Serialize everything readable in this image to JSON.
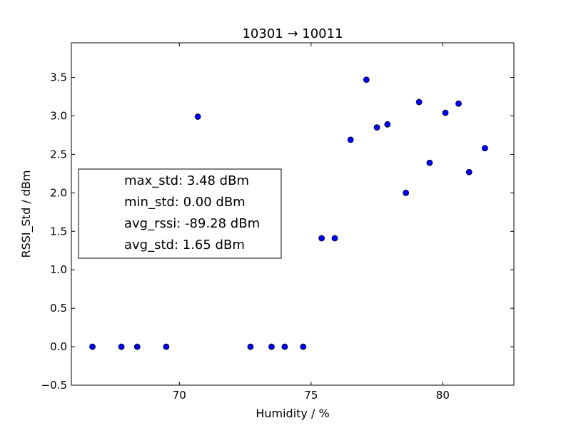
{
  "chart_data": {
    "type": "scatter",
    "title": "10301 → 10011",
    "xlabel": "Humidity / %",
    "ylabel": "RSSI_Std / dBm",
    "xlim": [
      65.9,
      82.7
    ],
    "ylim": [
      -0.5,
      3.95
    ],
    "xticks": [
      "70",
      "75",
      "80"
    ],
    "xtick_values": [
      70,
      75,
      80
    ],
    "yticks": [
      "−0.5",
      "0.0",
      "0.5",
      "1.0",
      "1.5",
      "2.0",
      "2.5",
      "3.0",
      "3.5"
    ],
    "ytick_values": [
      -0.5,
      0.0,
      0.5,
      1.0,
      1.5,
      2.0,
      2.5,
      3.0,
      3.5
    ],
    "grid": false,
    "marker_color": "#0000ff",
    "marker_edge": "#000000",
    "points": [
      {
        "x": 66.7,
        "y": 0.0
      },
      {
        "x": 67.8,
        "y": 0.0
      },
      {
        "x": 68.4,
        "y": 0.0
      },
      {
        "x": 69.5,
        "y": 0.0
      },
      {
        "x": 70.7,
        "y": 2.99
      },
      {
        "x": 72.7,
        "y": 0.0
      },
      {
        "x": 73.5,
        "y": 0.0
      },
      {
        "x": 74.0,
        "y": 0.0
      },
      {
        "x": 74.7,
        "y": 0.0
      },
      {
        "x": 75.4,
        "y": 1.41
      },
      {
        "x": 75.9,
        "y": 1.41
      },
      {
        "x": 76.5,
        "y": 2.69
      },
      {
        "x": 77.1,
        "y": 3.47
      },
      {
        "x": 77.5,
        "y": 2.85
      },
      {
        "x": 77.9,
        "y": 2.89
      },
      {
        "x": 78.6,
        "y": 2.0
      },
      {
        "x": 79.1,
        "y": 3.18
      },
      {
        "x": 79.5,
        "y": 2.39
      },
      {
        "x": 80.1,
        "y": 3.04
      },
      {
        "x": 80.6,
        "y": 3.16
      },
      {
        "x": 81.0,
        "y": 2.27
      },
      {
        "x": 81.6,
        "y": 2.58
      }
    ],
    "legend": {
      "placement": "center-left",
      "entries": [
        "max_std: 3.48 dBm",
        "min_std: 0.00 dBm",
        "avg_rssi: -89.28 dBm",
        "avg_std: 1.65 dBm"
      ]
    }
  }
}
